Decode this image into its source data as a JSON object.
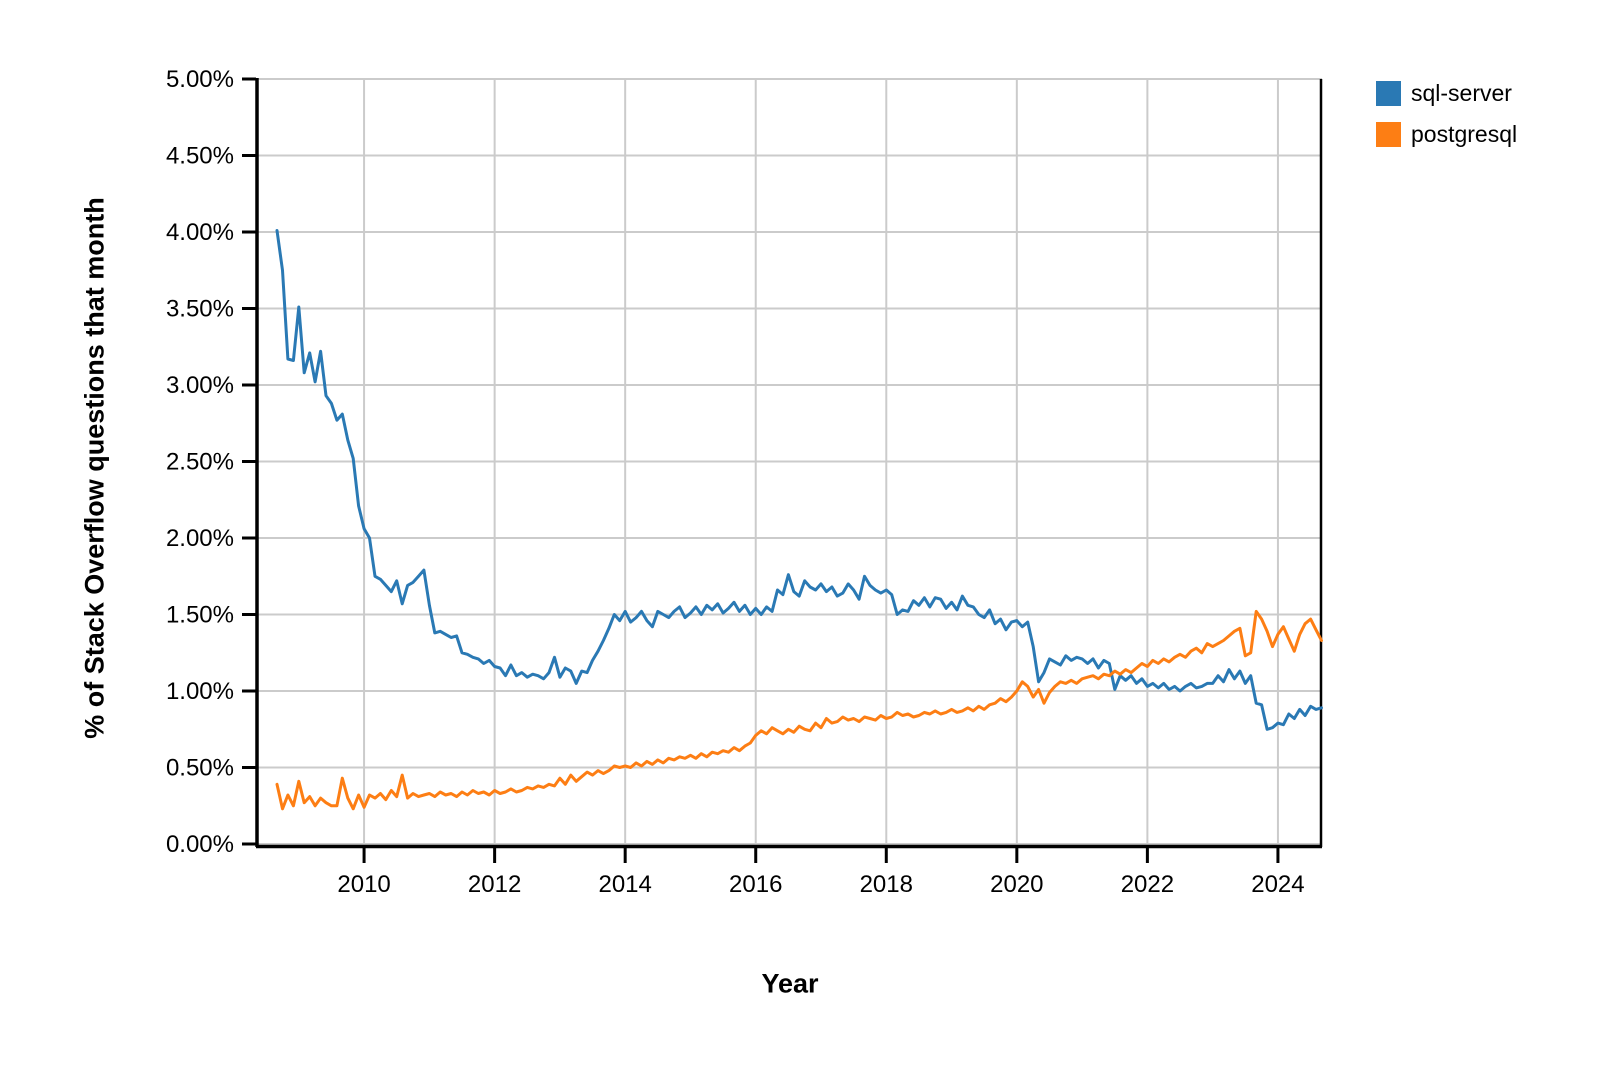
{
  "chart_data": {
    "type": "line",
    "title": "",
    "xlabel": "Year",
    "ylabel": "% of Stack Overflow questions that month",
    "legend_position": "top-right",
    "grid": true,
    "grid_color": "#cbcbcb",
    "axis_color": "#000000",
    "background_color": "#ffffff",
    "xlim": [
      2008.375,
      2024.675
    ],
    "ylim": [
      0,
      5
    ],
    "x_ticks": [
      2010,
      2012,
      2014,
      2016,
      2018,
      2020,
      2022,
      2024
    ],
    "x_tick_labels": [
      "2010",
      "2012",
      "2014",
      "2016",
      "2018",
      "2020",
      "2022",
      "2024"
    ],
    "y_ticks": [
      0,
      0.5,
      1,
      1.5,
      2,
      2.5,
      3,
      3.5,
      4,
      4.5,
      5
    ],
    "y_tick_labels": [
      "0.00%",
      "0.50%",
      "1.00%",
      "1.50%",
      "2.00%",
      "2.50%",
      "3.00%",
      "3.50%",
      "4.00%",
      "4.50%",
      "5.00%"
    ],
    "x_start": 2008.6667,
    "x_step": 0.0833333,
    "x_unit": "month",
    "series": [
      {
        "name": "sql-server",
        "color": "#2A79B4",
        "values": [
          4.01,
          3.75,
          3.17,
          3.16,
          3.51,
          3.08,
          3.21,
          3.02,
          3.22,
          2.93,
          2.88,
          2.77,
          2.81,
          2.64,
          2.52,
          2.21,
          2.06,
          2.0,
          1.75,
          1.73,
          1.69,
          1.65,
          1.72,
          1.57,
          1.69,
          1.71,
          1.75,
          1.79,
          1.56,
          1.38,
          1.39,
          1.37,
          1.35,
          1.36,
          1.25,
          1.24,
          1.22,
          1.21,
          1.18,
          1.2,
          1.16,
          1.15,
          1.1,
          1.17,
          1.1,
          1.12,
          1.09,
          1.11,
          1.1,
          1.08,
          1.12,
          1.22,
          1.09,
          1.15,
          1.13,
          1.05,
          1.13,
          1.12,
          1.2,
          1.26,
          1.33,
          1.41,
          1.5,
          1.46,
          1.52,
          1.45,
          1.48,
          1.52,
          1.46,
          1.42,
          1.52,
          1.5,
          1.48,
          1.52,
          1.55,
          1.48,
          1.51,
          1.55,
          1.5,
          1.56,
          1.53,
          1.57,
          1.51,
          1.54,
          1.58,
          1.52,
          1.56,
          1.5,
          1.54,
          1.5,
          1.55,
          1.52,
          1.66,
          1.63,
          1.76,
          1.65,
          1.62,
          1.72,
          1.68,
          1.66,
          1.7,
          1.65,
          1.68,
          1.62,
          1.64,
          1.7,
          1.66,
          1.6,
          1.75,
          1.69,
          1.66,
          1.64,
          1.66,
          1.63,
          1.5,
          1.53,
          1.52,
          1.59,
          1.56,
          1.61,
          1.55,
          1.61,
          1.6,
          1.54,
          1.58,
          1.53,
          1.62,
          1.56,
          1.55,
          1.5,
          1.48,
          1.53,
          1.44,
          1.47,
          1.4,
          1.45,
          1.46,
          1.42,
          1.45,
          1.29,
          1.06,
          1.12,
          1.21,
          1.19,
          1.17,
          1.23,
          1.2,
          1.22,
          1.21,
          1.18,
          1.21,
          1.15,
          1.2,
          1.18,
          1.01,
          1.1,
          1.07,
          1.1,
          1.05,
          1.08,
          1.03,
          1.05,
          1.02,
          1.05,
          1.01,
          1.03,
          1.0,
          1.03,
          1.05,
          1.02,
          1.03,
          1.05,
          1.05,
          1.1,
          1.06,
          1.14,
          1.08,
          1.13,
          1.05,
          1.1,
          0.92,
          0.91,
          0.75,
          0.76,
          0.79,
          0.78,
          0.85,
          0.82,
          0.88,
          0.84,
          0.9,
          0.88,
          0.89
        ]
      },
      {
        "name": "postgresql",
        "color": "#FD7E14",
        "values": [
          0.39,
          0.23,
          0.32,
          0.25,
          0.41,
          0.27,
          0.31,
          0.25,
          0.3,
          0.27,
          0.25,
          0.25,
          0.43,
          0.3,
          0.23,
          0.32,
          0.24,
          0.32,
          0.3,
          0.33,
          0.29,
          0.35,
          0.31,
          0.45,
          0.3,
          0.33,
          0.31,
          0.32,
          0.33,
          0.31,
          0.34,
          0.32,
          0.33,
          0.31,
          0.34,
          0.32,
          0.35,
          0.33,
          0.34,
          0.32,
          0.35,
          0.33,
          0.34,
          0.36,
          0.34,
          0.35,
          0.37,
          0.36,
          0.38,
          0.37,
          0.39,
          0.38,
          0.43,
          0.39,
          0.45,
          0.41,
          0.44,
          0.47,
          0.45,
          0.48,
          0.46,
          0.48,
          0.51,
          0.5,
          0.51,
          0.5,
          0.53,
          0.51,
          0.54,
          0.52,
          0.55,
          0.53,
          0.56,
          0.55,
          0.57,
          0.56,
          0.58,
          0.56,
          0.59,
          0.57,
          0.6,
          0.59,
          0.61,
          0.6,
          0.63,
          0.61,
          0.64,
          0.66,
          0.71,
          0.74,
          0.72,
          0.76,
          0.74,
          0.72,
          0.75,
          0.73,
          0.77,
          0.75,
          0.74,
          0.79,
          0.76,
          0.82,
          0.79,
          0.8,
          0.83,
          0.81,
          0.82,
          0.8,
          0.83,
          0.82,
          0.81,
          0.84,
          0.82,
          0.83,
          0.86,
          0.84,
          0.85,
          0.83,
          0.84,
          0.86,
          0.85,
          0.87,
          0.85,
          0.86,
          0.88,
          0.86,
          0.87,
          0.89,
          0.87,
          0.9,
          0.88,
          0.91,
          0.92,
          0.95,
          0.93,
          0.96,
          1.0,
          1.06,
          1.03,
          0.96,
          1.01,
          0.92,
          0.99,
          1.03,
          1.06,
          1.05,
          1.07,
          1.05,
          1.08,
          1.09,
          1.1,
          1.08,
          1.11,
          1.1,
          1.13,
          1.11,
          1.14,
          1.12,
          1.15,
          1.18,
          1.16,
          1.2,
          1.18,
          1.21,
          1.19,
          1.22,
          1.24,
          1.22,
          1.26,
          1.28,
          1.25,
          1.31,
          1.29,
          1.31,
          1.33,
          1.36,
          1.39,
          1.41,
          1.23,
          1.25,
          1.52,
          1.47,
          1.39,
          1.29,
          1.37,
          1.42,
          1.34,
          1.26,
          1.37,
          1.44,
          1.47,
          1.4,
          1.33
        ]
      }
    ]
  },
  "legend": {
    "items": [
      {
        "label": "sql-server"
      },
      {
        "label": "postgresql"
      }
    ]
  }
}
